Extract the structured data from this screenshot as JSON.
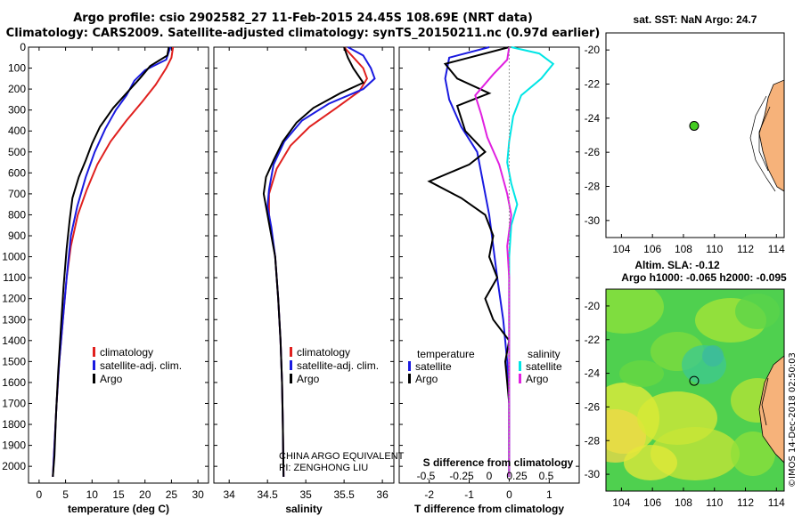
{
  "titles": {
    "line1": "Argo profile: csio 2902582_27 11-Feb-2015 24.45S 108.69E (NRT data)",
    "line2": "Climatology: CARS2009. Satellite-adjusted climatology: synTS_20150211.nc (0.97d earlier)"
  },
  "colors": {
    "climatology": "#e0201e",
    "satellite": "#1a1ae0",
    "argo": "#000000",
    "sal_sat": "#00e5e5",
    "sal_argo": "#e020e0"
  },
  "chart_data": [
    {
      "id": "temperature",
      "type": "line",
      "xlabel": "temperature (deg C)",
      "ylabel": "",
      "xlim": [
        -2,
        32
      ],
      "ylim": [
        2080,
        0
      ],
      "xticks": [
        0,
        5,
        10,
        15,
        20,
        25,
        30
      ],
      "yticks": [
        0,
        100,
        200,
        300,
        400,
        500,
        600,
        700,
        800,
        900,
        1000,
        1100,
        1200,
        1300,
        1400,
        1500,
        1600,
        1700,
        1800,
        1900,
        2000
      ],
      "legend": [
        "climatology",
        "satellite-adj. clim.",
        "Argo"
      ],
      "series": [
        {
          "name": "climatology",
          "color": "#e0201e",
          "points": [
            [
              25.3,
              0
            ],
            [
              25,
              50
            ],
            [
              24,
              100
            ],
            [
              22,
              180
            ],
            [
              19.5,
              260
            ],
            [
              16.5,
              350
            ],
            [
              13.5,
              450
            ],
            [
              11,
              560
            ],
            [
              9,
              680
            ],
            [
              7.3,
              800
            ],
            [
              6,
              950
            ],
            [
              5.2,
              1100
            ],
            [
              4.5,
              1300
            ],
            [
              3.8,
              1500
            ],
            [
              3.3,
              1700
            ],
            [
              2.9,
              1900
            ],
            [
              2.6,
              2050
            ]
          ]
        },
        {
          "name": "satellite-adj. clim.",
          "color": "#1a1ae0",
          "points": [
            [
              24.8,
              0
            ],
            [
              24,
              60
            ],
            [
              20,
              110
            ],
            [
              18,
              160
            ],
            [
              16.5,
              230
            ],
            [
              14.5,
              300
            ],
            [
              12.5,
              390
            ],
            [
              10.5,
              500
            ],
            [
              8.8,
              620
            ],
            [
              7.2,
              760
            ],
            [
              6,
              900
            ],
            [
              5.2,
              1100
            ],
            [
              4.5,
              1300
            ],
            [
              3.8,
              1500
            ],
            [
              3.3,
              1700
            ],
            [
              2.9,
              1900
            ],
            [
              2.6,
              2050
            ]
          ]
        },
        {
          "name": "Argo",
          "color": "#000000",
          "points": [
            [
              24.5,
              0
            ],
            [
              24.2,
              40
            ],
            [
              21,
              90
            ],
            [
              19,
              150
            ],
            [
              16.5,
              220
            ],
            [
              14,
              290
            ],
            [
              11.5,
              380
            ],
            [
              10,
              460
            ],
            [
              8.8,
              540
            ],
            [
              7.5,
              620
            ],
            [
              6.3,
              720
            ],
            [
              5.8,
              820
            ],
            [
              5.2,
              960
            ],
            [
              4.6,
              1150
            ],
            [
              4.1,
              1350
            ],
            [
              3.6,
              1550
            ],
            [
              3.2,
              1750
            ],
            [
              2.9,
              1950
            ],
            [
              2.6,
              2050
            ]
          ]
        }
      ]
    },
    {
      "id": "salinity",
      "type": "line",
      "xlabel": "salinity",
      "xlim": [
        33.8,
        36.15
      ],
      "ylim": [
        2080,
        0
      ],
      "xticks": [
        34,
        34.5,
        35,
        35.5,
        36
      ],
      "legend": [
        "climatology",
        "satellite-adj. clim.",
        "Argo"
      ],
      "series": [
        {
          "name": "climatology",
          "color": "#e0201e",
          "points": [
            [
              35.5,
              0
            ],
            [
              35.6,
              40
            ],
            [
              35.75,
              100
            ],
            [
              35.8,
              150
            ],
            [
              35.7,
              210
            ],
            [
              35.4,
              290
            ],
            [
              35.05,
              380
            ],
            [
              34.8,
              470
            ],
            [
              34.62,
              580
            ],
            [
              34.52,
              700
            ],
            [
              34.52,
              800
            ],
            [
              34.56,
              900
            ],
            [
              34.6,
              1000
            ],
            [
              34.64,
              1200
            ],
            [
              34.67,
              1400
            ],
            [
              34.69,
              1600
            ],
            [
              34.7,
              1800
            ],
            [
              34.71,
              2050
            ]
          ]
        },
        {
          "name": "satellite-adj. clim.",
          "color": "#1a1ae0",
          "points": [
            [
              35.55,
              0
            ],
            [
              35.75,
              40
            ],
            [
              35.85,
              100
            ],
            [
              35.9,
              150
            ],
            [
              35.75,
              200
            ],
            [
              35.3,
              270
            ],
            [
              34.95,
              350
            ],
            [
              34.72,
              450
            ],
            [
              34.58,
              560
            ],
            [
              34.52,
              680
            ],
            [
              34.5,
              760
            ],
            [
              34.55,
              860
            ],
            [
              34.6,
              1000
            ],
            [
              34.64,
              1200
            ],
            [
              34.67,
              1400
            ],
            [
              34.69,
              1600
            ],
            [
              34.7,
              1800
            ],
            [
              34.71,
              2050
            ]
          ]
        },
        {
          "name": "Argo",
          "color": "#000000",
          "points": [
            [
              35.5,
              0
            ],
            [
              35.55,
              50
            ],
            [
              35.62,
              100
            ],
            [
              35.75,
              170
            ],
            [
              35.45,
              220
            ],
            [
              35.1,
              290
            ],
            [
              34.88,
              360
            ],
            [
              34.7,
              450
            ],
            [
              34.58,
              540
            ],
            [
              34.48,
              620
            ],
            [
              34.45,
              700
            ],
            [
              34.5,
              800
            ],
            [
              34.55,
              900
            ],
            [
              34.6,
              1000
            ],
            [
              34.64,
              1200
            ],
            [
              34.67,
              1400
            ],
            [
              34.69,
              1600
            ],
            [
              34.7,
              1800
            ],
            [
              34.71,
              2050
            ]
          ]
        }
      ],
      "annotation": [
        "CHINA ARGO EQUIVALENT",
        "PI: ZENGHONG LIU"
      ]
    },
    {
      "id": "difference",
      "type": "line",
      "xlabel": "T difference from climatology",
      "x2label": "S difference from climatology",
      "xlim": [
        -2.75,
        1.75
      ],
      "ylim": [
        2080,
        0
      ],
      "xticks": [
        -2,
        -1,
        0,
        1
      ],
      "x2ticks": [
        "-0.5",
        "-0.25",
        "0",
        "0.25",
        "0.5"
      ],
      "legend_titles": [
        "temperature",
        "salinity"
      ],
      "legend": [
        "satellite",
        "Argo",
        "satellite",
        "Argo"
      ],
      "series": [
        {
          "name": "temperature satellite",
          "color": "#1a1ae0",
          "points": [
            [
              -0.5,
              0
            ],
            [
              -1.5,
              50
            ],
            [
              -1.6,
              150
            ],
            [
              -1.5,
              250
            ],
            [
              -1.2,
              380
            ],
            [
              -0.8,
              500
            ],
            [
              -0.7,
              600
            ],
            [
              -0.6,
              700
            ],
            [
              -0.5,
              800
            ],
            [
              -0.4,
              950
            ],
            [
              -0.3,
              1100
            ],
            [
              -0.15,
              1300
            ],
            [
              -0.05,
              1500
            ],
            [
              0,
              1700
            ],
            [
              0,
              2050
            ]
          ]
        },
        {
          "name": "temperature Argo",
          "color": "#000000",
          "points": [
            [
              0,
              0
            ],
            [
              -1.6,
              80
            ],
            [
              -1.3,
              150
            ],
            [
              -0.5,
              220
            ],
            [
              -1.3,
              280
            ],
            [
              -1.1,
              400
            ],
            [
              -0.6,
              500
            ],
            [
              -1.0,
              560
            ],
            [
              -2.0,
              640
            ],
            [
              -1.2,
              720
            ],
            [
              -0.6,
              800
            ],
            [
              -0.4,
              900
            ],
            [
              -0.5,
              1000
            ],
            [
              -0.3,
              1100
            ],
            [
              -0.6,
              1200
            ],
            [
              -0.4,
              1300
            ],
            [
              0,
              1400
            ],
            [
              -0.1,
              1500
            ],
            [
              0,
              1700
            ],
            [
              0,
              2050
            ]
          ]
        },
        {
          "name": "salinity satellite",
          "color": "#00e5e5",
          "points": [
            [
              0.05,
              0
            ],
            [
              0.75,
              30
            ],
            [
              1.1,
              80
            ],
            [
              0.8,
              150
            ],
            [
              0.3,
              230
            ],
            [
              0.1,
              330
            ],
            [
              0,
              450
            ],
            [
              -0.05,
              550
            ],
            [
              0.05,
              650
            ],
            [
              0.2,
              750
            ],
            [
              0.05,
              850
            ],
            [
              0,
              1000
            ],
            [
              0,
              2050
            ]
          ]
        },
        {
          "name": "salinity Argo",
          "color": "#e020e0",
          "points": [
            [
              0,
              0
            ],
            [
              -0.05,
              60
            ],
            [
              -0.4,
              130
            ],
            [
              -0.85,
              230
            ],
            [
              -0.7,
              320
            ],
            [
              -0.55,
              430
            ],
            [
              -0.25,
              560
            ],
            [
              -0.05,
              700
            ],
            [
              0.05,
              800
            ],
            [
              -0.05,
              950
            ],
            [
              0,
              1100
            ],
            [
              0,
              2050
            ]
          ]
        }
      ]
    }
  ],
  "map_top": {
    "title": "sat. SST: NaN Argo: 24.7",
    "xticks": [
      "104",
      "106",
      "108",
      "110",
      "112",
      "114"
    ],
    "yticks": [
      "-20",
      "-22",
      "-24",
      "-26",
      "-28",
      "-30"
    ],
    "lon": [
      103,
      114.5
    ],
    "lat": [
      -19,
      -31
    ],
    "float": {
      "lon": 108.69,
      "lat": -24.45,
      "color": "#44cc22"
    }
  },
  "map_bottom": {
    "title1": "Altim. SLA: -0.12",
    "title2": "Argo h1000: -0.065 h2000: -0.095",
    "xticks": [
      "104",
      "106",
      "108",
      "110",
      "112",
      "114"
    ],
    "yticks": [
      "-20",
      "-22",
      "-24",
      "-26",
      "-28",
      "-30"
    ],
    "lon": [
      103,
      114.5
    ],
    "lat": [
      -19,
      -31
    ],
    "float": {
      "lon": 108.69,
      "lat": -24.45
    }
  },
  "credit": "©IMOS 14-Dec-2018 02:50:03"
}
